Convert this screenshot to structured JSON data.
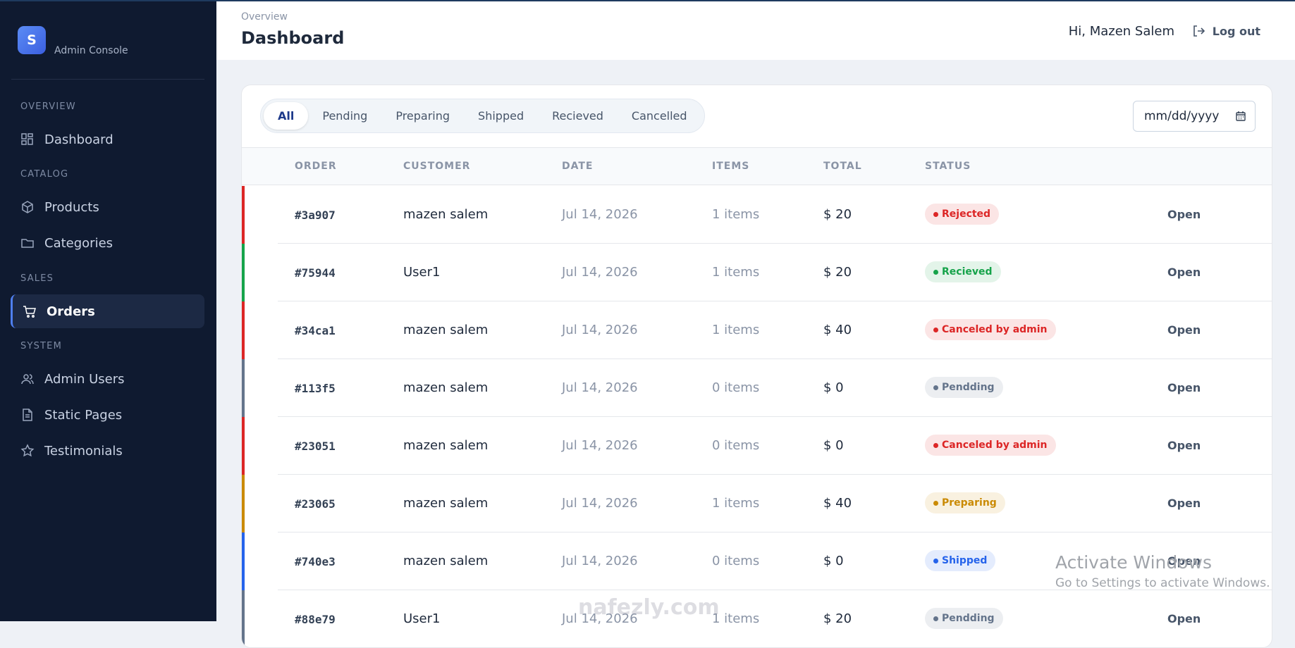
{
  "sidebar": {
    "logo_letter": "S",
    "brand": "Admin Console",
    "sections": [
      {
        "heading": "OVERVIEW",
        "items": [
          {
            "label": "Dashboard",
            "icon": "grid"
          }
        ]
      },
      {
        "heading": "CATALOG",
        "items": [
          {
            "label": "Products",
            "icon": "box"
          },
          {
            "label": "Categories",
            "icon": "folder"
          }
        ]
      },
      {
        "heading": "SALES",
        "items": [
          {
            "label": "Orders",
            "icon": "cart",
            "active": true
          }
        ]
      },
      {
        "heading": "SYSTEM",
        "items": [
          {
            "label": "Admin Users",
            "icon": "users"
          },
          {
            "label": "Static Pages",
            "icon": "file"
          },
          {
            "label": "Testimonials",
            "icon": "star"
          }
        ]
      }
    ]
  },
  "header": {
    "breadcrumb": "Overview",
    "title": "Dashboard",
    "greeting": "Hi, Mazen Salem",
    "logout": "Log out"
  },
  "filters": {
    "tabs": [
      "All",
      "Pending",
      "Preparing",
      "Shipped",
      "Recieved",
      "Cancelled"
    ],
    "active_tab": 0,
    "date_placeholder": "mm/dd/yyyy"
  },
  "table": {
    "columns": [
      "ORDER",
      "CUSTOMER",
      "DATE",
      "ITEMS",
      "TOTAL",
      "STATUS"
    ],
    "rows": [
      {
        "order": "#3a907",
        "customer": "mazen salem",
        "date": "Jul 14, 2026",
        "items": "1 items",
        "total": "$ 20",
        "status": "Rejected",
        "color": "#dc2626",
        "action": "Open"
      },
      {
        "order": "#75944",
        "customer": "User1",
        "date": "Jul 14, 2026",
        "items": "1 items",
        "total": "$ 20",
        "status": "Recieved",
        "color": "#16a34a",
        "action": "Open"
      },
      {
        "order": "#34ca1",
        "customer": "mazen salem",
        "date": "Jul 14, 2026",
        "items": "1 items",
        "total": "$ 40",
        "status": "Canceled by admin",
        "color": "#dc2626",
        "action": "Open"
      },
      {
        "order": "#113f5",
        "customer": "mazen salem",
        "date": "Jul 14, 2026",
        "items": "0 items",
        "total": "$ 0",
        "status": "Pendding",
        "color": "#64748b",
        "action": "Open"
      },
      {
        "order": "#23051",
        "customer": "mazen salem",
        "date": "Jul 14, 2026",
        "items": "0 items",
        "total": "$ 0",
        "status": "Canceled by admin",
        "color": "#dc2626",
        "action": "Open"
      },
      {
        "order": "#23065",
        "customer": "mazen salem",
        "date": "Jul 14, 2026",
        "items": "1 items",
        "total": "$ 40",
        "status": "Preparing",
        "color": "#ca8a04",
        "action": "Open"
      },
      {
        "order": "#740e3",
        "customer": "mazen salem",
        "date": "Jul 14, 2026",
        "items": "0 items",
        "total": "$ 0",
        "status": "Shipped",
        "color": "#2563eb",
        "action": "Open"
      },
      {
        "order": "#88e79",
        "customer": "User1",
        "date": "Jul 14, 2026",
        "items": "1 items",
        "total": "$ 20",
        "status": "Pendding",
        "color": "#64748b",
        "action": "Open"
      }
    ]
  },
  "watermark": {
    "title": "Activate Windows",
    "subtitle": "Go to Settings to activate Windows.",
    "site": "nafezly.com"
  }
}
